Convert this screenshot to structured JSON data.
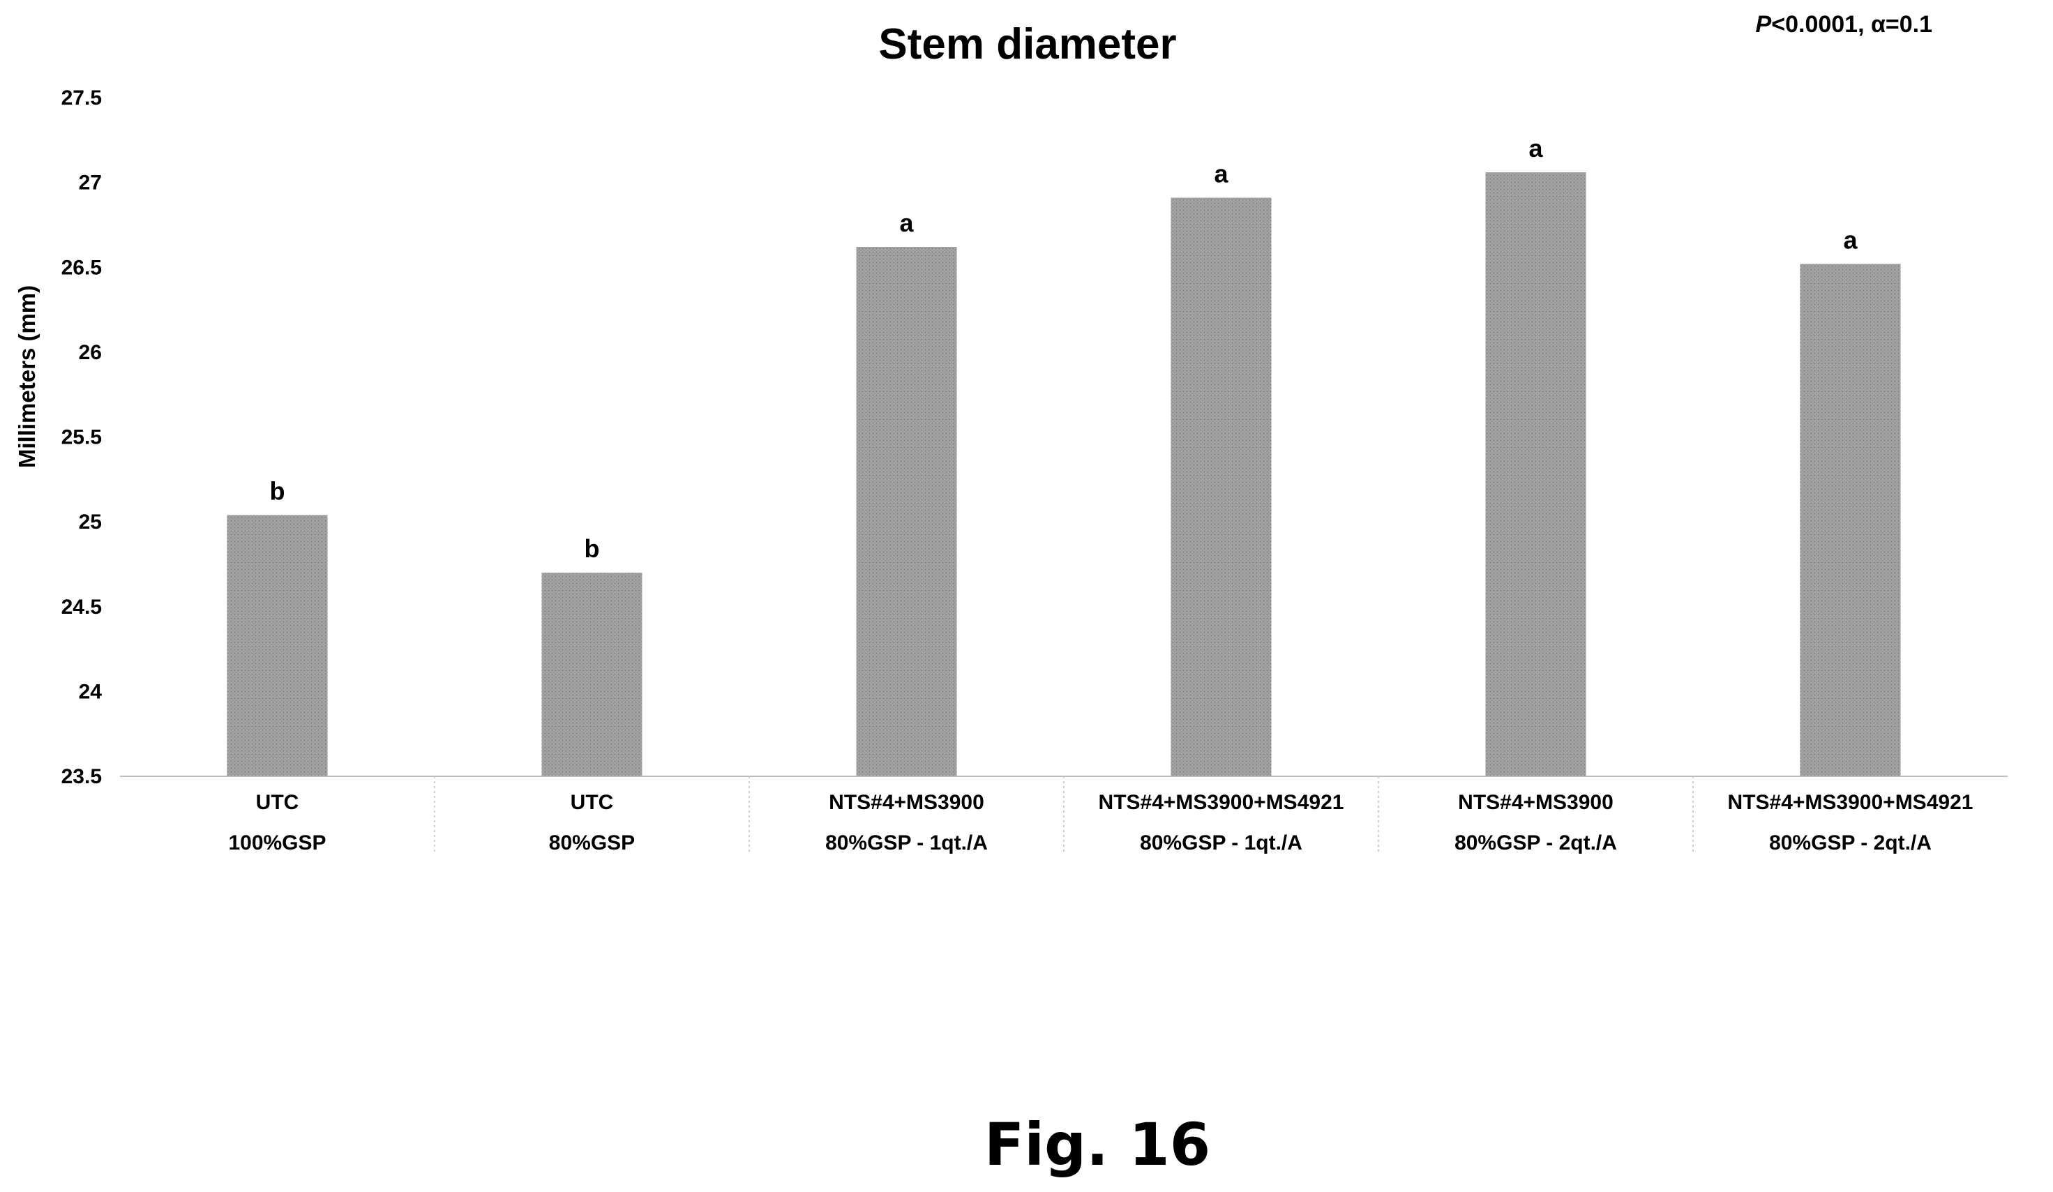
{
  "chart_data": {
    "type": "bar",
    "title": "Stem diameter",
    "stat_prefix": "P",
    "stat_rest": "<0.0001, α=0.1",
    "ylabel": "Millimeters (mm)",
    "xlabel": "",
    "ylim": [
      23.5,
      27.5
    ],
    "yticks": [
      "23.5",
      "24",
      "24.5",
      "25",
      "25.5",
      "26",
      "26.5",
      "27",
      "27.5"
    ],
    "categories": [
      {
        "line1": "UTC",
        "line2": "100%GSP"
      },
      {
        "line1": "UTC",
        "line2": "80%GSP"
      },
      {
        "line1": "NTS#4+MS3900",
        "line2": "80%GSP - 1qt./A"
      },
      {
        "line1": "NTS#4+MS3900+MS4921",
        "line2": "80%GSP - 1qt./A"
      },
      {
        "line1": "NTS#4+MS3900",
        "line2": "80%GSP - 2qt./A"
      },
      {
        "line1": "NTS#4+MS3900+MS4921",
        "line2": "80%GSP - 2qt./A"
      }
    ],
    "values": [
      25.04,
      24.7,
      26.62,
      26.91,
      27.06,
      26.52
    ],
    "significance": [
      "b",
      "b",
      "a",
      "a",
      "a",
      "a"
    ],
    "bar_color": "#9a9a9a",
    "grid": false,
    "legend": "none"
  },
  "figure_label": "Fig. 16"
}
